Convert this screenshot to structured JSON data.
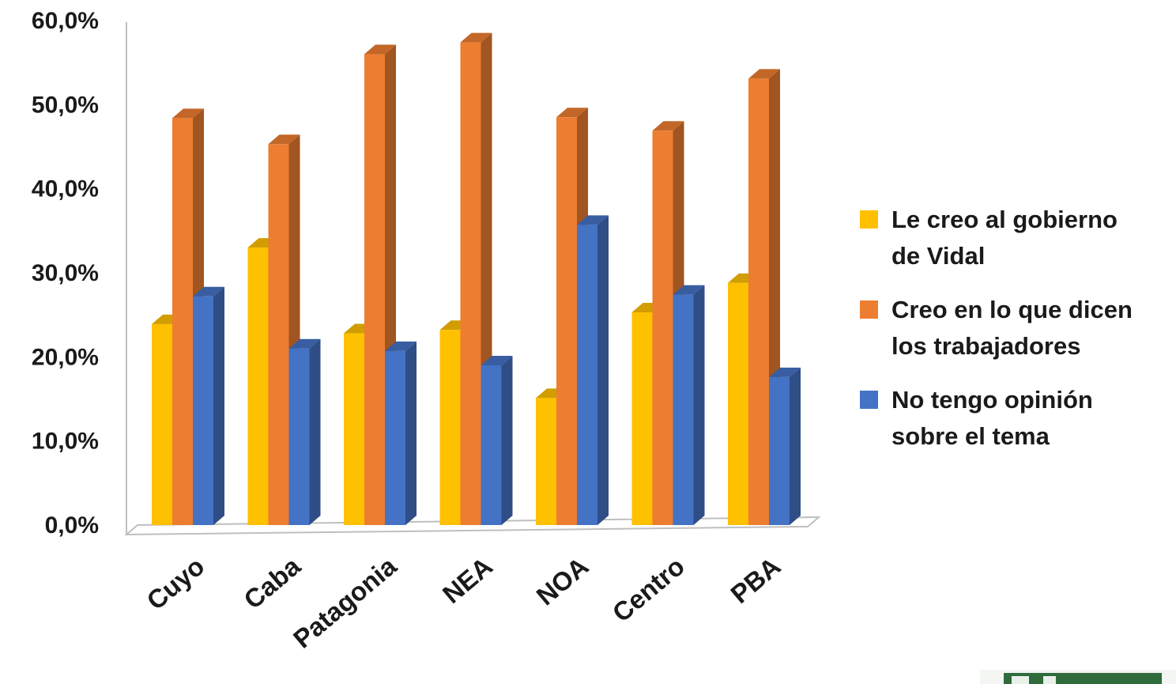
{
  "chart_data": {
    "type": "bar",
    "categories": [
      "Cuyo",
      "Caba",
      "Patagonia",
      "NEA",
      "NOA",
      "Centro",
      "PBA"
    ],
    "series": [
      {
        "name": "Le creo al gobierno de Vidal",
        "color": "#FFC000",
        "values": [
          23.9,
          33.0,
          22.8,
          23.2,
          15.1,
          25.3,
          28.8
        ]
      },
      {
        "name": "Creo en lo que dicen los trabajadores",
        "color": "#ED7D31",
        "values": [
          48.4,
          45.3,
          56.0,
          57.4,
          48.5,
          46.9,
          53.1
        ]
      },
      {
        "name": "No tengo opinión sobre el tema",
        "color": "#4472C4",
        "values": [
          27.2,
          21.0,
          20.7,
          19.0,
          35.7,
          27.4,
          17.6
        ]
      }
    ],
    "y_ticks": [
      "0,0%",
      "10,0%",
      "20,0%",
      "30,0%",
      "40,0%",
      "50,0%",
      "60,0%"
    ],
    "ylim": [
      0,
      60
    ],
    "legend_lines": [
      [
        "Le creo al gobierno",
        "de Vidal"
      ],
      [
        "Creo en lo que dicen",
        "los trabajadores"
      ],
      [
        "No tengo opinión",
        "sobre el tema"
      ]
    ],
    "legend_position": "right",
    "grid": false
  }
}
